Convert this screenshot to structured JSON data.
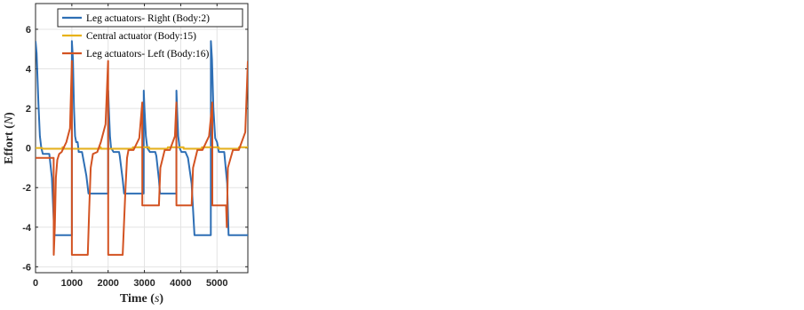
{
  "chart_data": [
    {
      "type": "line",
      "title": "",
      "xlabel": "Time (s)",
      "ylabel": "Effort (N)",
      "xlim": [
        0,
        5850
      ],
      "ylim": [
        -6.3,
        7.3
      ],
      "xticks": [
        "0",
        "1000",
        "2000",
        "3000",
        "4000",
        "5000"
      ],
      "yticks": [
        "-6",
        "-4",
        "-2",
        "0",
        "2",
        "4",
        "6"
      ],
      "grid": true,
      "legend": "top-right",
      "series": [
        {
          "name": "Leg actuators- Right (Body:2)",
          "color": "#2e6fb5",
          "x": [
            0,
            30,
            80,
            120,
            160,
            200,
            380,
            450,
            520,
            1000,
            1001,
            1030,
            1060,
            1090,
            1120,
            1160,
            1190,
            1280,
            1400,
            1460,
            2000,
            2001,
            2020,
            2050,
            2080,
            2150,
            2300,
            2320,
            2400,
            2440,
            2470,
            2500,
            2980,
            2981,
            3000,
            3040,
            3080,
            3150,
            3300,
            3330,
            3400,
            3430,
            3460,
            3500,
            3880,
            3881,
            3900,
            3930,
            3970,
            4020,
            4130,
            4200,
            4300,
            4380,
            4420,
            4830,
            4831,
            4860,
            4900,
            4950,
            5000,
            5050,
            5200,
            5280,
            5320,
            5850
          ],
          "y": [
            5.4,
            4.8,
            2.2,
            0.6,
            0.0,
            -0.3,
            -0.3,
            -1.5,
            -4.4,
            -4.4,
            5.4,
            4.5,
            2.0,
            0.6,
            0.3,
            0.3,
            -0.2,
            -0.2,
            -1.4,
            -2.3,
            -2.3,
            2.9,
            2.0,
            0.6,
            0.0,
            -0.2,
            -0.2,
            -0.4,
            -1.6,
            -2.3,
            -2.3,
            -2.3,
            -2.3,
            2.9,
            2.0,
            0.6,
            0.0,
            -0.2,
            -0.2,
            -0.4,
            -1.6,
            -2.3,
            -2.3,
            -2.3,
            -2.3,
            2.9,
            2.0,
            0.6,
            0.0,
            -0.2,
            -0.2,
            -0.5,
            -1.8,
            -4.4,
            -4.4,
            -4.4,
            5.4,
            4.5,
            2.0,
            0.5,
            0.3,
            -0.2,
            -0.2,
            -1.8,
            -4.4,
            -4.4
          ]
        },
        {
          "name": "Central actuator (Body:15)",
          "color": "#e8b21a",
          "x": [
            0,
            180,
            200,
            740,
            741,
            780,
            781,
            1760,
            1761,
            1800,
            1801,
            2680,
            2681,
            2720,
            3130,
            3131,
            3640,
            3641,
            3680,
            4080,
            4081,
            4580,
            4581,
            4620,
            5050,
            5051,
            5600,
            5601,
            5640,
            5850
          ],
          "y": [
            0,
            0,
            -0.04,
            -0.04,
            0.04,
            0.04,
            -0.04,
            -0.04,
            0.04,
            0.04,
            -0.04,
            -0.04,
            0.04,
            0.04,
            0.04,
            -0.04,
            -0.04,
            0.04,
            0.04,
            0.04,
            -0.04,
            -0.04,
            0.04,
            0.04,
            0.04,
            -0.04,
            -0.04,
            0.04,
            0.04,
            0.04
          ]
        },
        {
          "name": "Leg actuators- Left (Body:16)",
          "color": "#d35322",
          "x": [
            0,
            500,
            501,
            530,
            560,
            600,
            650,
            720,
            850,
            950,
            1000,
            1001,
            1440,
            1480,
            1520,
            1580,
            1700,
            1800,
            1930,
            2000,
            2001,
            2400,
            2480,
            2520,
            2560,
            2700,
            2860,
            2940,
            2941,
            3400,
            3440,
            3560,
            3700,
            3840,
            3880,
            3881,
            4300,
            4340,
            4460,
            4600,
            4780,
            4870,
            4871,
            5250,
            5270,
            5300,
            5440,
            5600,
            5780,
            5850
          ],
          "y": [
            -0.5,
            -0.5,
            -5.4,
            -4.0,
            -1.5,
            -0.6,
            -0.3,
            -0.2,
            0.3,
            1.0,
            4.4,
            -5.4,
            -5.4,
            -3.0,
            -1.0,
            -0.3,
            -0.2,
            0.3,
            1.2,
            4.4,
            -5.4,
            -5.4,
            -2.0,
            -0.5,
            -0.1,
            -0.1,
            0.5,
            2.3,
            -2.9,
            -2.9,
            -1.0,
            -0.1,
            -0.1,
            0.6,
            2.3,
            -2.9,
            -2.9,
            -1.0,
            -0.1,
            -0.1,
            0.6,
            2.3,
            -2.9,
            -2.9,
            -4.0,
            -1.0,
            -0.1,
            -0.1,
            0.8,
            4.4
          ]
        }
      ]
    }
  ]
}
